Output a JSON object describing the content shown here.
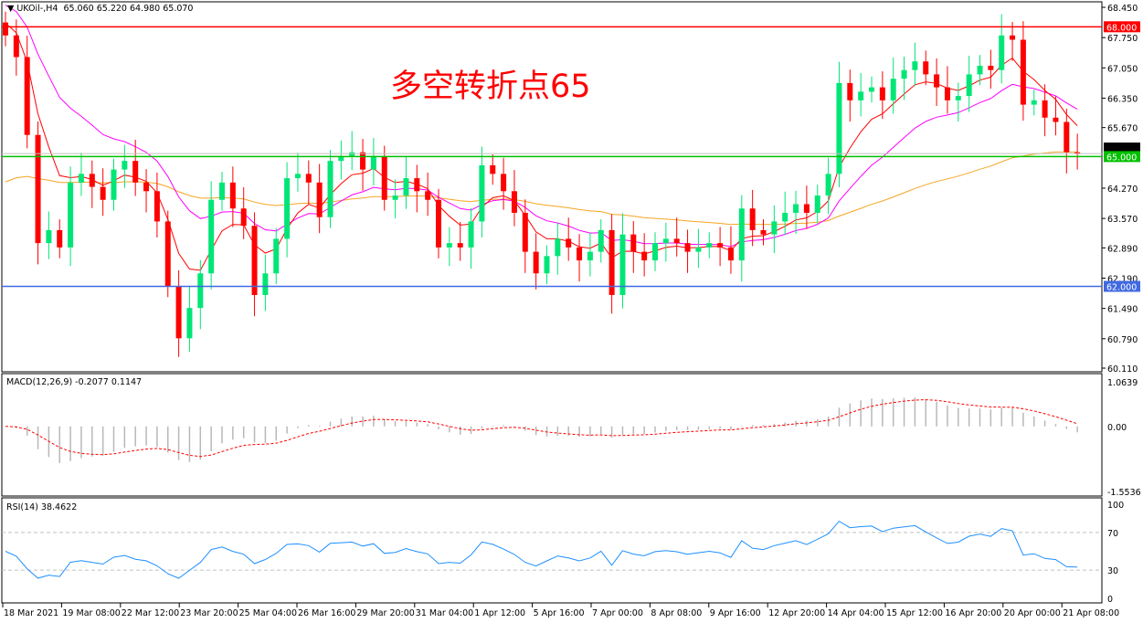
{
  "header": {
    "symbol": "UKOil-,H4",
    "ohlc": "65.060 65.220 64.980 65.070"
  },
  "annotation": "多空转折点65",
  "colors": {
    "bull": "#00e676",
    "bear": "#ff0000",
    "ma_fast": "#ff0000",
    "ma_mid": "#ff00ff",
    "ma_slow": "#f5a623",
    "support": "#4169e1",
    "pivot": "#00c000",
    "resistance": "#ff0000"
  },
  "levels": [
    {
      "label": "68.000",
      "value": 68.0,
      "color": "#ff0000"
    },
    {
      "label": "65.000",
      "value": 65.0,
      "color": "#00c000"
    },
    {
      "label": "62.000",
      "value": 62.0,
      "color": "#4169e1"
    }
  ],
  "chart_data": [
    {
      "type": "candlestick",
      "ylim": [
        60.11,
        68.45
      ],
      "y_ticks": [
        "68.450",
        "67.750",
        "67.050",
        "66.350",
        "65.670",
        "64.270",
        "63.570",
        "62.890",
        "62.190",
        "61.490",
        "60.790",
        "60.110"
      ],
      "x_ticks": [
        "18 Mar 2021",
        "19 Mar 08:00",
        "22 Mar 12:00",
        "23 Mar 20:00",
        "25 Mar 04:00",
        "26 Mar 16:00",
        "29 Mar 20:00",
        "31 Mar 04:00",
        "1 Apr 12:00",
        "5 Apr 16:00",
        "7 Apr 00:00",
        "8 Apr 08:00",
        "9 Apr 16:00",
        "12 Apr 20:00",
        "14 Apr 04:00",
        "15 Apr 12:00",
        "16 Apr 20:00",
        "20 Apr 00:00",
        "21 Apr 08:00"
      ],
      "close": [
        67.8,
        67.3,
        65.5,
        63.0,
        63.3,
        62.9,
        64.4,
        64.6,
        64.3,
        64.0,
        64.7,
        64.9,
        64.4,
        64.2,
        63.5,
        62.0,
        60.8,
        61.5,
        62.3,
        64.0,
        64.4,
        63.8,
        63.4,
        61.8,
        62.3,
        63.1,
        64.5,
        64.6,
        64.4,
        63.6,
        64.9,
        65.0,
        65.1,
        64.7,
        65.0,
        64.0,
        64.1,
        64.5,
        64.2,
        64.0,
        62.9,
        63.0,
        62.9,
        63.5,
        64.8,
        64.6,
        64.2,
        63.7,
        62.8,
        62.3,
        62.7,
        63.1,
        62.9,
        62.6,
        62.8,
        63.3,
        61.8,
        63.2,
        62.8,
        62.6,
        63.0,
        63.1,
        63.0,
        62.8,
        62.9,
        63.0,
        62.9,
        62.6,
        63.8,
        63.3,
        63.2,
        63.5,
        63.7,
        63.9,
        63.7,
        64.1,
        64.6,
        66.7,
        66.3,
        66.5,
        66.6,
        66.3,
        66.8,
        67.0,
        67.2,
        66.9,
        66.6,
        66.3,
        66.4,
        66.9,
        67.1,
        67.0,
        67.8,
        67.7,
        66.2,
        66.3,
        65.9,
        65.8,
        65.1,
        65.07
      ],
      "current_price": 65.07
    },
    {
      "type": "bar+line",
      "title": "MACD(12,26,9) -0.2077 0.1147",
      "ylim": [
        -1.5536,
        1.0639
      ],
      "y_ticks": [
        "1.0639",
        "0.00",
        "-1.5536"
      ]
    },
    {
      "type": "line",
      "title": "RSI(14) 38.4622",
      "ylim": [
        0,
        100
      ],
      "y_ticks": [
        "100",
        "70",
        "30",
        "0"
      ],
      "levels": [
        70,
        30
      ]
    }
  ]
}
